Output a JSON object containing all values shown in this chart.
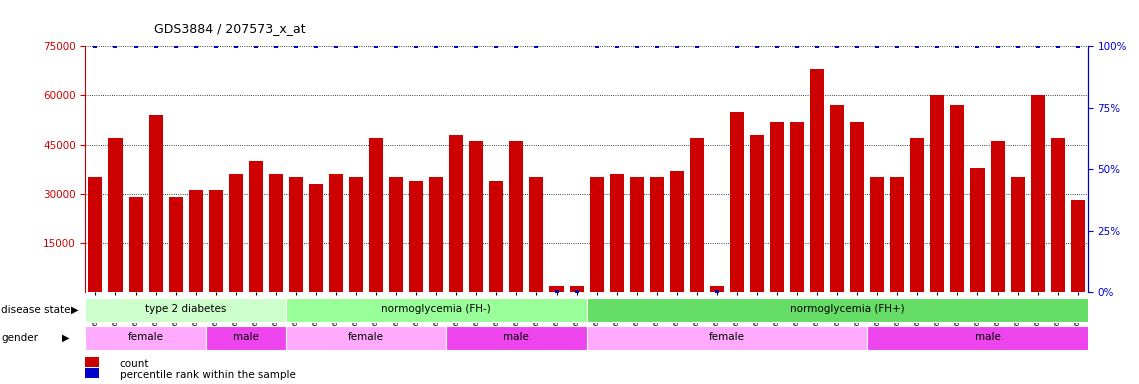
{
  "title": "GDS3884 / 207573_x_at",
  "samples": [
    "GSM624962",
    "GSM624963",
    "GSM624967",
    "GSM624968",
    "GSM624969",
    "GSM624970",
    "GSM624961",
    "GSM624964",
    "GSM624965",
    "GSM624966",
    "GSM624925",
    "GSM624927",
    "GSM624929",
    "GSM624930",
    "GSM624931",
    "GSM624935",
    "GSM624936",
    "GSM624937",
    "GSM624926",
    "GSM624928",
    "GSM624932",
    "GSM624933",
    "GSM624934",
    "GSM624971",
    "GSM624973",
    "GSM624938",
    "GSM624940",
    "GSM624941",
    "GSM624942",
    "GSM624943",
    "GSM624945",
    "GSM624946",
    "GSM624949",
    "GSM624951",
    "GSM624952",
    "GSM624955",
    "GSM624956",
    "GSM624957",
    "GSM624974",
    "GSM624939",
    "GSM624944",
    "GSM624947",
    "GSM624948",
    "GSM624950",
    "GSM624953",
    "GSM624954",
    "GSM624958",
    "GSM624959",
    "GSM624960",
    "GSM624972"
  ],
  "counts": [
    35000,
    47000,
    29000,
    54000,
    29000,
    31000,
    31000,
    36000,
    40000,
    36000,
    35000,
    33000,
    36000,
    35000,
    47000,
    35000,
    34000,
    35000,
    48000,
    46000,
    34000,
    46000,
    35000,
    2000,
    2000,
    35000,
    36000,
    35000,
    35000,
    37000,
    47000,
    2000,
    55000,
    48000,
    52000,
    52000,
    68000,
    57000,
    52000,
    35000,
    35000,
    47000,
    60000,
    57000,
    38000,
    46000,
    35000,
    60000,
    47000,
    28000
  ],
  "percentile_ranks": [
    100,
    100,
    100,
    100,
    100,
    100,
    100,
    100,
    100,
    100,
    100,
    100,
    100,
    100,
    100,
    100,
    100,
    100,
    100,
    100,
    100,
    100,
    100,
    0,
    0,
    100,
    100,
    100,
    100,
    100,
    100,
    0,
    100,
    100,
    100,
    100,
    100,
    100,
    100,
    100,
    100,
    100,
    100,
    100,
    100,
    100,
    100,
    100,
    100,
    100
  ],
  "bar_color": "#cc0000",
  "dot_color": "#0000cc",
  "ylim_left": [
    0,
    75000
  ],
  "ylim_right": [
    0,
    100
  ],
  "yticks_left": [
    15000,
    30000,
    45000,
    60000,
    75000
  ],
  "yticks_right": [
    0,
    25,
    50,
    75,
    100
  ],
  "disease_groups": [
    {
      "label": "type 2 diabetes",
      "start": 0,
      "end": 9,
      "color": "#ccffcc"
    },
    {
      "label": "normoglycemia (FH-)",
      "start": 10,
      "end": 24,
      "color": "#99ff99"
    },
    {
      "label": "normoglycemia (FH+)",
      "start": 25,
      "end": 50,
      "color": "#66dd66"
    }
  ],
  "gender_groups": [
    {
      "label": "female",
      "start": 0,
      "end": 5,
      "color": "#ffaaff"
    },
    {
      "label": "male",
      "start": 6,
      "end": 9,
      "color": "#ee44ee"
    },
    {
      "label": "female",
      "start": 10,
      "end": 17,
      "color": "#ffaaff"
    },
    {
      "label": "male",
      "start": 18,
      "end": 24,
      "color": "#ee44ee"
    },
    {
      "label": "female",
      "start": 25,
      "end": 38,
      "color": "#ffaaff"
    },
    {
      "label": "male",
      "start": 39,
      "end": 50,
      "color": "#ee44ee"
    }
  ],
  "legend_count_label": "count",
  "legend_pct_label": "percentile rank within the sample",
  "disease_state_label": "disease state",
  "gender_label": "gender",
  "background_color": "#ffffff",
  "tick_label_color_left": "#cc0000",
  "tick_label_color_right": "#0000cc"
}
